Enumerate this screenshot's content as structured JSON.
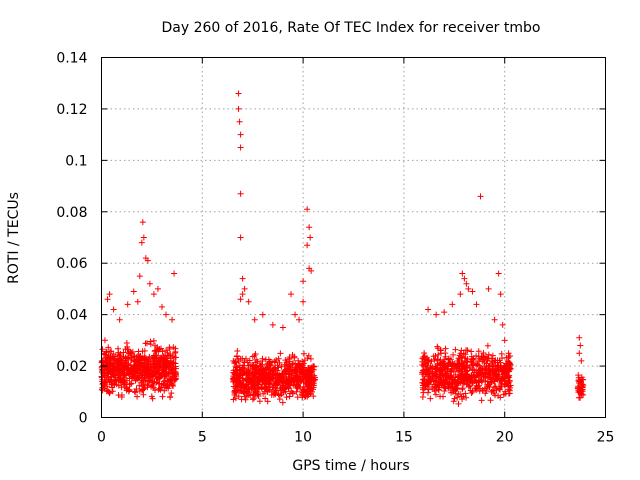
{
  "chart_data": {
    "type": "scatter",
    "title": "Day 260 of 2016, Rate Of TEC Index for receiver tmbo",
    "xlabel": "GPS time / hours",
    "ylabel": "ROTI / TECUs",
    "xlim": [
      0,
      25
    ],
    "ylim": [
      0,
      0.14
    ],
    "xticks": [
      0,
      5,
      10,
      15,
      20,
      25
    ],
    "xtick_labels": [
      "0",
      "5",
      "10",
      "15",
      "20",
      "25"
    ],
    "yticks": [
      0,
      0.02,
      0.04,
      0.06,
      0.08,
      0.1,
      0.12,
      0.14
    ],
    "ytick_labels": [
      "0",
      "0.02",
      "0.04",
      "0.06",
      "0.08",
      "0.1",
      "0.12",
      "0.14"
    ],
    "grid": true,
    "marker": "+",
    "series_color": "#ff0000",
    "clusters": [
      {
        "x_range": [
          0.0,
          3.7
        ],
        "y_range": [
          0.008,
          0.03
        ],
        "count": 700
      },
      {
        "x_range": [
          6.5,
          10.6
        ],
        "y_range": [
          0.006,
          0.026
        ],
        "count": 700
      },
      {
        "x_range": [
          15.9,
          20.3
        ],
        "y_range": [
          0.006,
          0.028
        ],
        "count": 700
      },
      {
        "x_range": [
          23.6,
          23.9
        ],
        "y_range": [
          0.007,
          0.02
        ],
        "count": 40
      }
    ],
    "points": [
      [
        0.3,
        0.046
      ],
      [
        0.4,
        0.048
      ],
      [
        0.6,
        0.042
      ],
      [
        0.9,
        0.038
      ],
      [
        1.3,
        0.044
      ],
      [
        1.6,
        0.049
      ],
      [
        1.8,
        0.045
      ],
      [
        1.9,
        0.055
      ],
      [
        2.0,
        0.068
      ],
      [
        2.05,
        0.076
      ],
      [
        2.1,
        0.07
      ],
      [
        2.2,
        0.062
      ],
      [
        2.3,
        0.061
      ],
      [
        2.4,
        0.052
      ],
      [
        2.6,
        0.048
      ],
      [
        2.8,
        0.05
      ],
      [
        3.0,
        0.043
      ],
      [
        3.2,
        0.04
      ],
      [
        3.5,
        0.038
      ],
      [
        3.6,
        0.056
      ],
      [
        6.8,
        0.126
      ],
      [
        6.8,
        0.12
      ],
      [
        6.85,
        0.115
      ],
      [
        6.9,
        0.11
      ],
      [
        6.9,
        0.105
      ],
      [
        6.9,
        0.087
      ],
      [
        6.9,
        0.07
      ],
      [
        7.0,
        0.054
      ],
      [
        7.1,
        0.05
      ],
      [
        7.0,
        0.048
      ],
      [
        6.9,
        0.046
      ],
      [
        7.3,
        0.045
      ],
      [
        7.6,
        0.038
      ],
      [
        8.0,
        0.04
      ],
      [
        8.5,
        0.036
      ],
      [
        9.0,
        0.035
      ],
      [
        9.4,
        0.048
      ],
      [
        9.6,
        0.04
      ],
      [
        9.8,
        0.038
      ],
      [
        10.0,
        0.045
      ],
      [
        10.0,
        0.053
      ],
      [
        10.2,
        0.081
      ],
      [
        10.3,
        0.074
      ],
      [
        10.35,
        0.07
      ],
      [
        10.2,
        0.067
      ],
      [
        10.4,
        0.057
      ],
      [
        10.3,
        0.058
      ],
      [
        16.2,
        0.042
      ],
      [
        16.6,
        0.04
      ],
      [
        17.0,
        0.041
      ],
      [
        17.4,
        0.044
      ],
      [
        17.8,
        0.048
      ],
      [
        17.9,
        0.056
      ],
      [
        18.0,
        0.054
      ],
      [
        18.1,
        0.052
      ],
      [
        18.2,
        0.05
      ],
      [
        18.4,
        0.049
      ],
      [
        18.6,
        0.044
      ],
      [
        18.8,
        0.086
      ],
      [
        19.2,
        0.05
      ],
      [
        19.5,
        0.038
      ],
      [
        19.7,
        0.056
      ],
      [
        19.8,
        0.048
      ],
      [
        19.9,
        0.036
      ],
      [
        20.0,
        0.03
      ],
      [
        23.7,
        0.031
      ],
      [
        23.75,
        0.028
      ],
      [
        23.7,
        0.025
      ],
      [
        23.8,
        0.022
      ]
    ]
  }
}
